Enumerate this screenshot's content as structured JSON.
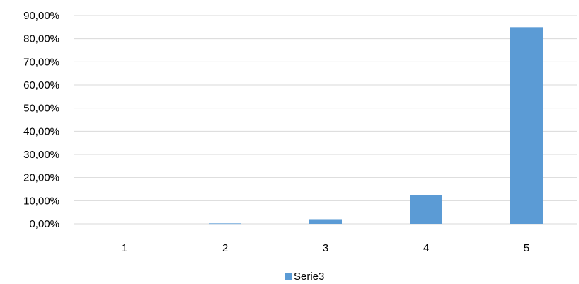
{
  "chart_data": {
    "type": "bar",
    "categories": [
      "1",
      "2",
      "3",
      "4",
      "5"
    ],
    "series": [
      {
        "name": "Serie3",
        "values": [
          0.0,
          0.2,
          2.0,
          12.5,
          85.0
        ],
        "color": "#5b9bd5"
      }
    ],
    "title": "",
    "xlabel": "",
    "ylabel": "",
    "ylim": [
      0,
      90
    ],
    "yticks": [
      "0,00%",
      "10,00%",
      "20,00%",
      "30,00%",
      "40,00%",
      "50,00%",
      "60,00%",
      "70,00%",
      "80,00%",
      "90,00%"
    ],
    "grid": true,
    "legend": "bottom"
  }
}
